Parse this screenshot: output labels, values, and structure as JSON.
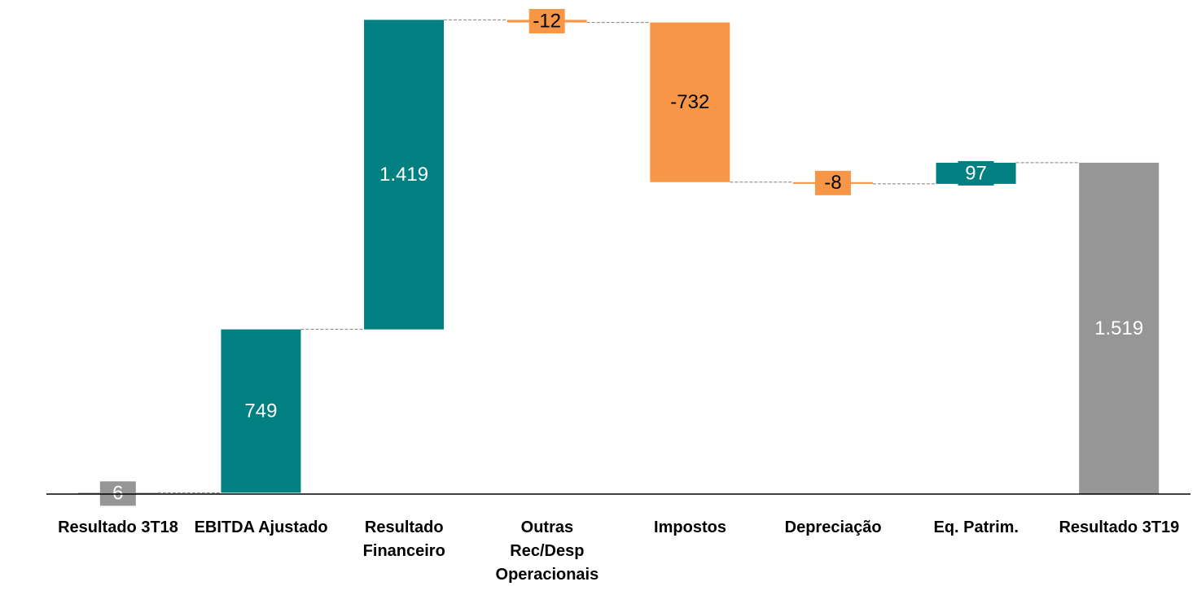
{
  "chart_data": {
    "type": "waterfall",
    "categories": [
      "Resultado 3T18",
      "EBITDA Ajustado",
      "Resultado\nFinanceiro",
      "Outras\nRec/Desp\nOperacionais",
      "Impostos",
      "Depreciação",
      "Eq. Patrim.",
      "Resultado 3T19"
    ],
    "values": [
      6,
      749,
      1419,
      -12,
      -732,
      -8,
      97,
      1519
    ],
    "value_labels": [
      "6",
      "749",
      "1.419",
      "-12",
      "-732",
      "-8",
      "97",
      "1.519"
    ],
    "measure": [
      "total",
      "relative",
      "relative",
      "relative",
      "relative",
      "relative",
      "relative",
      "total"
    ],
    "total_color": "#969696",
    "increase_color": "#008080",
    "decrease_color": "#f79646",
    "ylim": [
      0,
      2265
    ]
  }
}
